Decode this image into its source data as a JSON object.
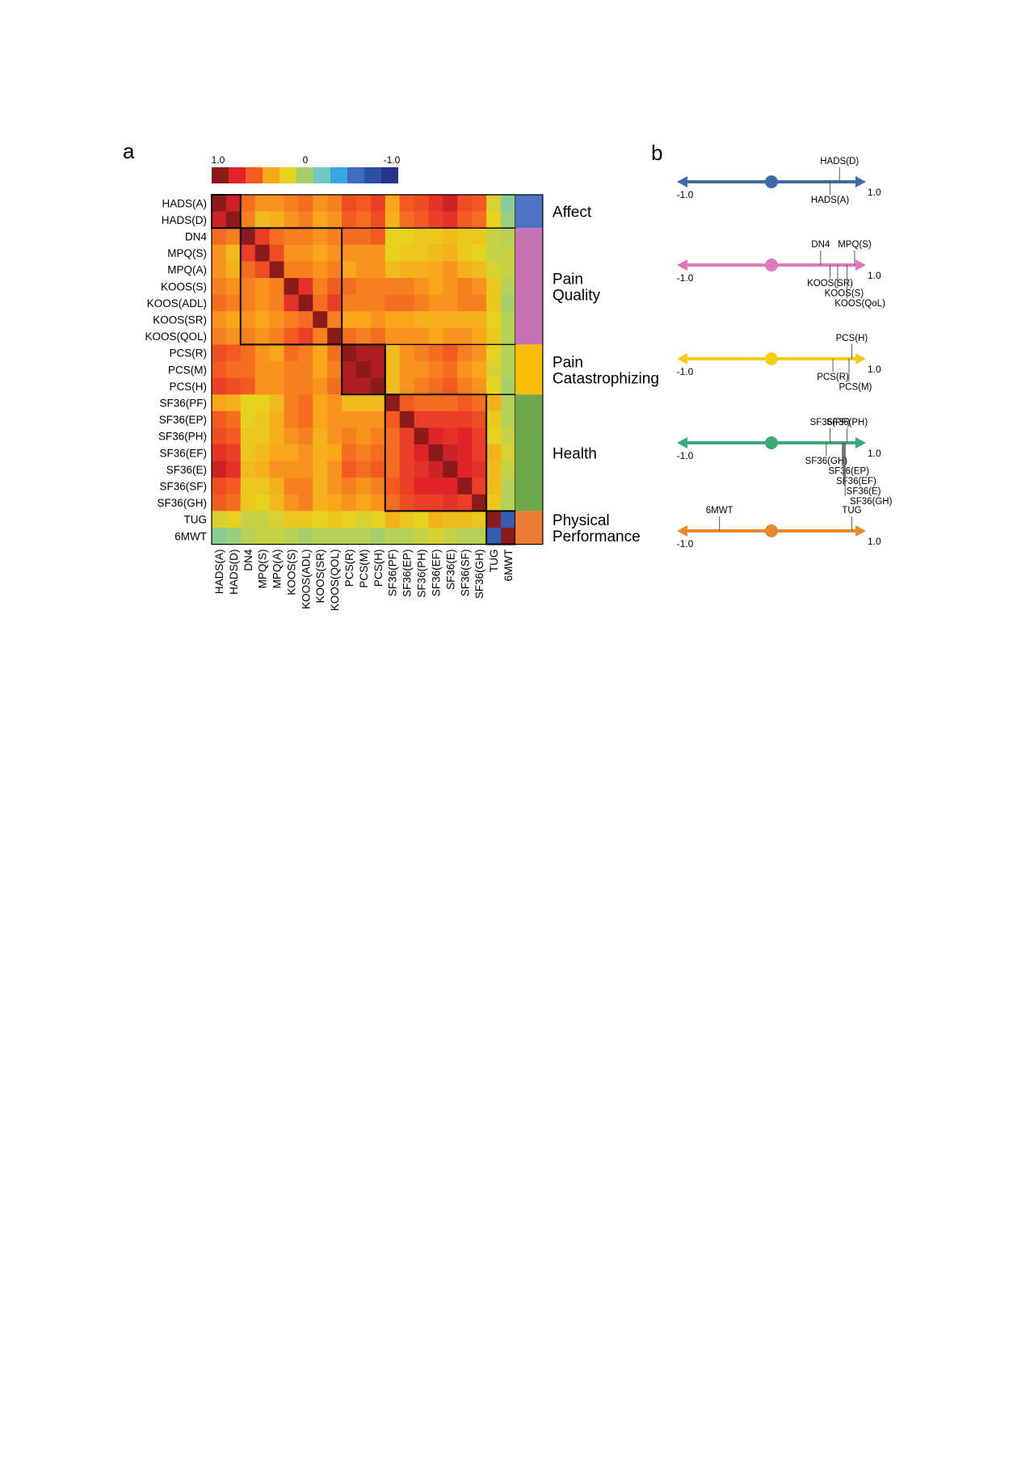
{
  "panel_a": {
    "label": "a"
  },
  "panel_b": {
    "label": "b"
  },
  "colorscale": {
    "title": "",
    "tick_labels": [
      "1.0",
      "0",
      "-1.0"
    ],
    "colors": [
      "#8b1a1a",
      "#e0242a",
      "#f35a22",
      "#f9a61b",
      "#e7d21f",
      "#a6cf6b",
      "#71c8c2",
      "#39a7e3",
      "#3b6cc0",
      "#2f4da4",
      "#263585"
    ]
  },
  "chart_data": [
    {
      "type": "heatmap",
      "title": "",
      "variables": [
        "HADS(A)",
        "HADS(D)",
        "DN4",
        "MPQ(S)",
        "MPQ(A)",
        "KOOS(S)",
        "KOOS(ADL)",
        "KOOS(SR)",
        "KOOS(QOL)",
        "PCS(R)",
        "PCS(M)",
        "PCS(H)",
        "SF36(PF)",
        "SF36(EP)",
        "SF36(PH)",
        "SF36(EF)",
        "SF36(E)",
        "SF36(SF)",
        "SF36(GH)",
        "TUG",
        "6MWT"
      ],
      "value_range": [
        -1.0,
        1.0
      ],
      "clusters": [
        {
          "name": "Affect",
          "lines": [
            "Affect"
          ],
          "start": 0,
          "end": 1,
          "color": "#4b74c6"
        },
        {
          "name": "Pain Quality",
          "lines": [
            "Pain",
            "Quality"
          ],
          "start": 2,
          "end": 8,
          "color": "#c472b2"
        },
        {
          "name": "Pain Catastrophizing",
          "lines": [
            "Pain",
            "Catastrophizing"
          ],
          "start": 9,
          "end": 11,
          "color": "#fbbd08"
        },
        {
          "name": "Health",
          "lines": [
            "Health"
          ],
          "start": 12,
          "end": 18,
          "color": "#6fa84c"
        },
        {
          "name": "Physical Performance",
          "lines": [
            "Physical",
            "Performance"
          ],
          "start": 19,
          "end": 20,
          "color": "#eb7c34"
        }
      ],
      "values": [
        [
          1.0,
          0.85,
          0.55,
          0.45,
          0.45,
          0.5,
          0.55,
          0.45,
          0.5,
          0.65,
          0.6,
          0.7,
          0.4,
          0.6,
          0.65,
          0.75,
          0.85,
          0.65,
          0.6,
          0.15,
          -0.1
        ],
        [
          0.85,
          1.0,
          0.5,
          0.3,
          0.35,
          0.45,
          0.5,
          0.4,
          0.45,
          0.6,
          0.55,
          0.65,
          0.35,
          0.55,
          0.6,
          0.7,
          0.75,
          0.6,
          0.55,
          0.2,
          -0.05
        ],
        [
          0.55,
          0.5,
          1.0,
          0.7,
          0.55,
          0.5,
          0.5,
          0.45,
          0.5,
          0.55,
          0.55,
          0.6,
          0.2,
          0.2,
          0.25,
          0.25,
          0.3,
          0.25,
          0.25,
          0.1,
          0.05
        ],
        [
          0.45,
          0.3,
          0.7,
          1.0,
          0.65,
          0.45,
          0.45,
          0.4,
          0.45,
          0.45,
          0.45,
          0.45,
          0.2,
          0.25,
          0.25,
          0.3,
          0.35,
          0.25,
          0.2,
          0.1,
          0.1
        ],
        [
          0.45,
          0.35,
          0.55,
          0.65,
          1.0,
          0.5,
          0.5,
          0.45,
          0.5,
          0.4,
          0.45,
          0.45,
          0.3,
          0.35,
          0.35,
          0.4,
          0.45,
          0.35,
          0.3,
          0.15,
          0.1
        ],
        [
          0.5,
          0.45,
          0.5,
          0.45,
          0.5,
          1.0,
          0.75,
          0.5,
          0.6,
          0.55,
          0.5,
          0.5,
          0.5,
          0.5,
          0.45,
          0.4,
          0.45,
          0.5,
          0.45,
          0.25,
          0.05
        ],
        [
          0.55,
          0.5,
          0.5,
          0.45,
          0.5,
          0.75,
          1.0,
          0.55,
          0.7,
          0.5,
          0.5,
          0.5,
          0.55,
          0.55,
          0.5,
          0.45,
          0.45,
          0.5,
          0.5,
          0.25,
          0.0
        ],
        [
          0.45,
          0.4,
          0.45,
          0.4,
          0.45,
          0.5,
          0.55,
          1.0,
          0.5,
          0.4,
          0.4,
          0.45,
          0.4,
          0.4,
          0.35,
          0.35,
          0.35,
          0.35,
          0.35,
          0.2,
          0.05
        ],
        [
          0.5,
          0.45,
          0.5,
          0.45,
          0.5,
          0.6,
          0.7,
          0.5,
          1.0,
          0.55,
          0.5,
          0.55,
          0.45,
          0.45,
          0.45,
          0.4,
          0.45,
          0.45,
          0.4,
          0.25,
          0.05
        ],
        [
          0.65,
          0.6,
          0.55,
          0.45,
          0.4,
          0.55,
          0.5,
          0.4,
          0.55,
          1.0,
          0.92,
          0.92,
          0.3,
          0.45,
          0.5,
          0.55,
          0.6,
          0.5,
          0.45,
          0.2,
          0.05
        ],
        [
          0.6,
          0.55,
          0.55,
          0.45,
          0.45,
          0.5,
          0.5,
          0.4,
          0.5,
          0.92,
          1.0,
          0.92,
          0.3,
          0.45,
          0.45,
          0.5,
          0.55,
          0.45,
          0.4,
          0.15,
          0.05
        ],
        [
          0.7,
          0.65,
          0.6,
          0.45,
          0.45,
          0.5,
          0.5,
          0.45,
          0.55,
          0.92,
          0.92,
          1.0,
          0.3,
          0.45,
          0.5,
          0.55,
          0.6,
          0.5,
          0.45,
          0.2,
          0.0
        ],
        [
          0.4,
          0.35,
          0.2,
          0.2,
          0.3,
          0.5,
          0.55,
          0.4,
          0.45,
          0.3,
          0.3,
          0.3,
          1.0,
          0.6,
          0.55,
          0.55,
          0.55,
          0.6,
          0.55,
          0.35,
          0.05
        ],
        [
          0.6,
          0.55,
          0.2,
          0.25,
          0.35,
          0.5,
          0.55,
          0.4,
          0.45,
          0.45,
          0.45,
          0.45,
          0.6,
          1.0,
          0.7,
          0.7,
          0.7,
          0.7,
          0.65,
          0.25,
          0.05
        ],
        [
          0.65,
          0.6,
          0.25,
          0.25,
          0.35,
          0.45,
          0.5,
          0.35,
          0.45,
          0.5,
          0.45,
          0.5,
          0.55,
          0.7,
          1.0,
          0.8,
          0.75,
          0.8,
          0.7,
          0.2,
          0.1
        ],
        [
          0.75,
          0.7,
          0.25,
          0.3,
          0.4,
          0.4,
          0.45,
          0.35,
          0.4,
          0.55,
          0.5,
          0.55,
          0.55,
          0.7,
          0.8,
          1.0,
          0.85,
          0.8,
          0.7,
          0.35,
          0.15
        ],
        [
          0.85,
          0.75,
          0.3,
          0.35,
          0.45,
          0.45,
          0.45,
          0.35,
          0.45,
          0.6,
          0.55,
          0.6,
          0.55,
          0.7,
          0.75,
          0.85,
          1.0,
          0.8,
          0.75,
          0.3,
          0.1
        ],
        [
          0.65,
          0.6,
          0.25,
          0.25,
          0.35,
          0.5,
          0.5,
          0.35,
          0.45,
          0.5,
          0.45,
          0.5,
          0.6,
          0.7,
          0.8,
          0.8,
          0.8,
          1.0,
          0.7,
          0.3,
          0.05
        ],
        [
          0.6,
          0.55,
          0.25,
          0.2,
          0.3,
          0.45,
          0.5,
          0.35,
          0.4,
          0.45,
          0.4,
          0.45,
          0.55,
          0.65,
          0.7,
          0.7,
          0.75,
          0.7,
          1.0,
          0.25,
          0.05
        ],
        [
          0.15,
          0.2,
          0.1,
          0.1,
          0.15,
          0.25,
          0.25,
          0.2,
          0.25,
          0.2,
          0.15,
          0.2,
          0.35,
          0.25,
          0.2,
          0.35,
          0.3,
          0.3,
          0.25,
          1.0,
          -0.7
        ],
        [
          -0.1,
          -0.05,
          0.05,
          0.1,
          0.1,
          0.05,
          0.0,
          0.05,
          0.05,
          0.05,
          0.05,
          0.0,
          0.05,
          0.05,
          0.1,
          0.15,
          0.1,
          0.05,
          0.05,
          -0.7,
          1.0
        ]
      ]
    },
    {
      "type": "scatter",
      "title": "",
      "axes": [
        {
          "name": "Affect",
          "xlim": [
            -1.0,
            1.0
          ],
          "min_label": "-1.0",
          "max_label": "1.0",
          "color": "#3f6ba8",
          "points": [
            {
              "label": "HADS(D)",
              "x": 0.72,
              "side": "above"
            },
            {
              "label": "HADS(A)",
              "x": 0.62,
              "side": "below"
            }
          ]
        },
        {
          "name": "Pain Quality",
          "xlim": [
            -1.0,
            1.0
          ],
          "min_label": "-1.0",
          "max_label": "1.0",
          "color": "#e079bb",
          "points": [
            {
              "label": "DN4",
              "x": 0.52,
              "side": "above"
            },
            {
              "label": "MPQ(S)",
              "x": 0.88,
              "side": "above"
            },
            {
              "label": "KOOS(SR)",
              "x": 0.62,
              "side": "below"
            },
            {
              "label": "KOOS(S)",
              "x": 0.7,
              "side": "below"
            },
            {
              "label": "KOOS(QoL)",
              "x": 0.8,
              "side": "below"
            }
          ]
        },
        {
          "name": "Pain Catastrophizing",
          "xlim": [
            -1.0,
            1.0
          ],
          "min_label": "-1.0",
          "max_label": "1.0",
          "color": "#f2cf1a",
          "points": [
            {
              "label": "PCS(H)",
              "x": 0.85,
              "side": "above"
            },
            {
              "label": "PCS(R)",
              "x": 0.65,
              "side": "below"
            },
            {
              "label": "PCS(M)",
              "x": 0.82,
              "side": "below"
            }
          ]
        },
        {
          "name": "Health",
          "xlim": [
            -1.0,
            1.0
          ],
          "min_label": "-1.0",
          "max_label": "1.0",
          "color": "#3ba978",
          "points": [
            {
              "label": "SF36(PF)",
              "x": 0.62,
              "side": "above"
            },
            {
              "label": "SF36(PH)",
              "x": 0.8,
              "side": "above"
            },
            {
              "label": "SF36(GH)",
              "x": 0.58,
              "side": "below"
            },
            {
              "label": "SF36(EP)",
              "x": 0.75,
              "side": "below"
            },
            {
              "label": "SF36(EF)",
              "x": 0.76,
              "side": "below"
            },
            {
              "label": "SF36(E)",
              "x": 0.77,
              "side": "below"
            },
            {
              "label": "SF36(GH)",
              "x": 0.78,
              "side": "below"
            }
          ]
        },
        {
          "name": "Physical Performance",
          "xlim": [
            -1.0,
            1.0
          ],
          "min_label": "-1.0",
          "max_label": "1.0",
          "color": "#e9892e",
          "points": [
            {
              "label": "6MWT",
              "x": -0.55,
              "side": "above"
            },
            {
              "label": "TUG",
              "x": 0.85,
              "side": "above"
            }
          ]
        }
      ]
    }
  ]
}
